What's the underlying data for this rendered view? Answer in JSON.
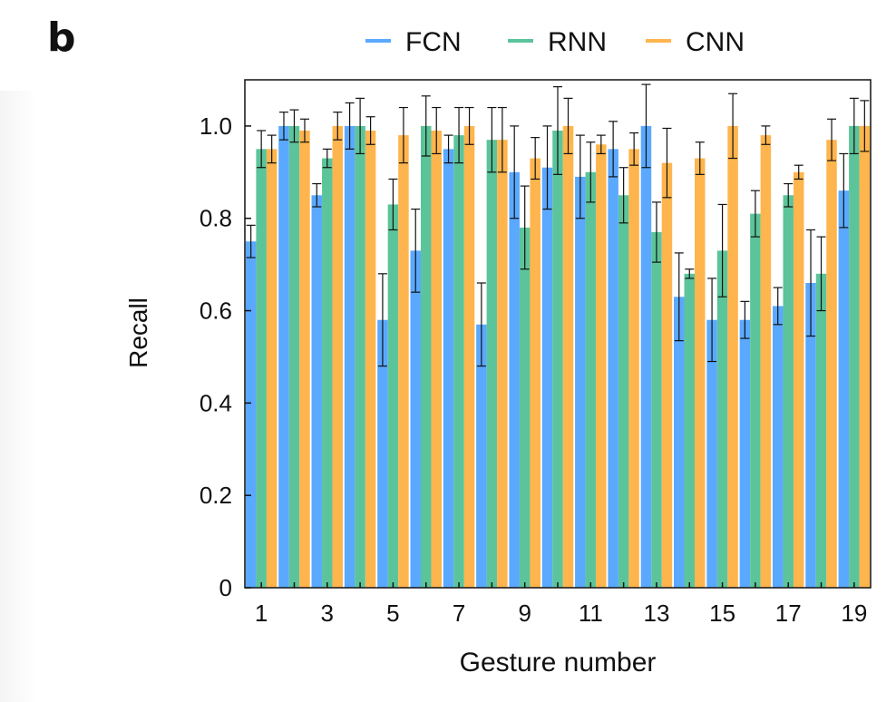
{
  "panel_label": "b",
  "chart_data": {
    "type": "bar",
    "xlabel": "Gesture number",
    "ylabel": "Recall",
    "ylim": [
      0,
      1.1
    ],
    "yticks": [
      0,
      0.2,
      0.4,
      0.6,
      0.8,
      1.0
    ],
    "ytick_labels": [
      "0",
      "0.2",
      "0.4",
      "0.6",
      "0.8",
      "1.0"
    ],
    "categories": [
      "1",
      "2",
      "3",
      "4",
      "5",
      "6",
      "7",
      "8",
      "9",
      "10",
      "11",
      "12",
      "13",
      "14",
      "15",
      "16",
      "17",
      "18",
      "19"
    ],
    "xtick_labels": [
      "1",
      "",
      "3",
      "",
      "5",
      "",
      "7",
      "",
      "9",
      "",
      "11",
      "",
      "13",
      "",
      "15",
      "",
      "17",
      "",
      "19"
    ],
    "legend_position": "top",
    "series": [
      {
        "name": "FCN",
        "color": "#5aa9ff",
        "values": [
          0.75,
          1.0,
          0.85,
          1.0,
          0.58,
          0.73,
          0.95,
          0.57,
          0.9,
          0.91,
          0.89,
          0.95,
          1.0,
          0.63,
          0.58,
          0.58,
          0.61,
          0.66,
          0.86
        ],
        "errors": [
          0.035,
          0.03,
          0.025,
          0.05,
          0.1,
          0.09,
          0.03,
          0.09,
          0.1,
          0.09,
          0.09,
          0.06,
          0.09,
          0.095,
          0.09,
          0.04,
          0.04,
          0.115,
          0.08
        ]
      },
      {
        "name": "RNN",
        "color": "#5cc49a",
        "values": [
          0.95,
          1.0,
          0.93,
          1.0,
          0.83,
          1.0,
          0.98,
          0.97,
          0.78,
          0.99,
          0.9,
          0.85,
          0.77,
          0.68,
          0.73,
          0.81,
          0.85,
          0.68,
          1.0
        ],
        "errors": [
          0.04,
          0.035,
          0.02,
          0.06,
          0.055,
          0.065,
          0.06,
          0.07,
          0.09,
          0.095,
          0.065,
          0.06,
          0.065,
          0.01,
          0.1,
          0.05,
          0.025,
          0.08,
          0.06
        ]
      },
      {
        "name": "CNN",
        "color": "#ffb54d",
        "values": [
          0.95,
          0.99,
          1.0,
          0.99,
          0.98,
          0.99,
          1.0,
          0.97,
          0.93,
          1.0,
          0.96,
          0.95,
          0.92,
          0.93,
          1.0,
          0.98,
          0.9,
          0.97,
          1.0
        ],
        "errors": [
          0.03,
          0.025,
          0.03,
          0.03,
          0.06,
          0.05,
          0.04,
          0.07,
          0.045,
          0.06,
          0.02,
          0.035,
          0.075,
          0.035,
          0.07,
          0.02,
          0.015,
          0.045,
          0.055
        ]
      }
    ]
  }
}
